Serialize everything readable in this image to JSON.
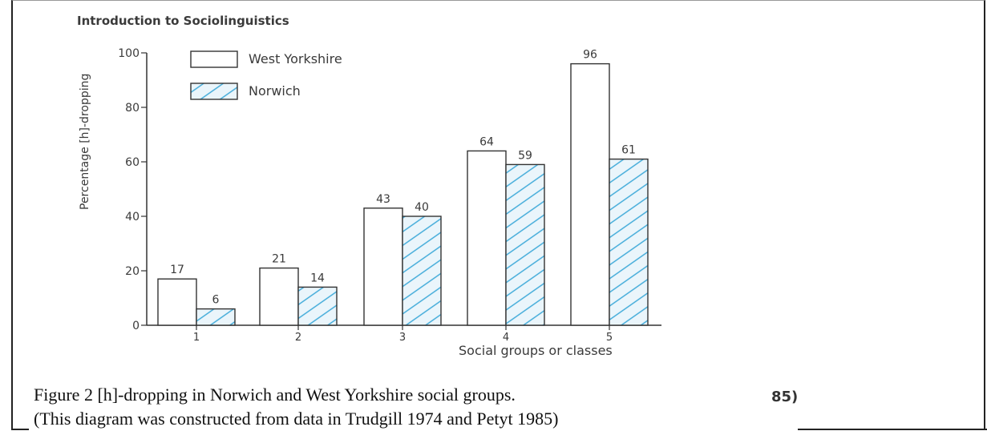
{
  "header": {
    "book_title": "Introduction to Sociolinguistics"
  },
  "chart_data": {
    "type": "bar",
    "title": "",
    "xlabel": "Social groups or classes",
    "ylabel": "Percentage [h]-dropping",
    "categories": [
      "1",
      "2",
      "3",
      "4",
      "5"
    ],
    "series": [
      {
        "name": "West Yorkshire",
        "values": [
          17,
          21,
          43,
          64,
          96
        ],
        "fill": "#ffffff",
        "stroke": "#333333"
      },
      {
        "name": "Norwich",
        "values": [
          6,
          14,
          40,
          59,
          61
        ],
        "fill": "#eaf5fb",
        "stroke": "#333333",
        "hatch": "#3aa8d8"
      }
    ],
    "ylim": [
      0,
      100
    ],
    "yticks": [
      0,
      20,
      40,
      60,
      80,
      100
    ],
    "grid": false,
    "legend": "top-left"
  },
  "caption": {
    "line1": "Figure 2 [h]-dropping in Norwich and West Yorkshire social groups.",
    "line2": "(This diagram was constructed from data in Trudgill 1974 and Petyt 1985)"
  },
  "page_fragment": "85)"
}
